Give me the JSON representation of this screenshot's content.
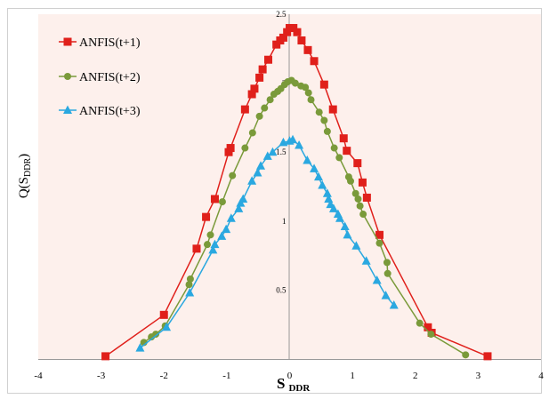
{
  "chart_data": {
    "type": "line",
    "title": "",
    "xlabel_main": "S",
    "xlabel_sub": "DDR",
    "ylabel_main": "Q(S",
    "ylabel_sub": "DDR",
    "ylabel_close": ")",
    "xlim": [
      -4,
      4
    ],
    "ylim": [
      0,
      2.5
    ],
    "xticks": [
      "-4",
      "-3",
      "-2",
      "-1",
      "0",
      "1",
      "2",
      "3",
      "4"
    ],
    "yticks": [
      "0.5",
      "1",
      "1.5",
      "2",
      "2.5"
    ],
    "grid": false,
    "legend_position": "top-left",
    "background_color": "#fdf0ec",
    "series": [
      {
        "name": "ANFIS(t+1)",
        "color": "#e0201b",
        "marker": "square",
        "points": [
          [
            -2.93,
            0.02
          ],
          [
            -2.0,
            0.32
          ],
          [
            -1.48,
            0.8
          ],
          [
            -1.33,
            1.03
          ],
          [
            -1.19,
            1.16
          ],
          [
            -0.97,
            1.5
          ],
          [
            -0.94,
            1.53
          ],
          [
            -0.71,
            1.81
          ],
          [
            -0.6,
            1.92
          ],
          [
            -0.56,
            1.96
          ],
          [
            -0.48,
            2.04
          ],
          [
            -0.43,
            2.1
          ],
          [
            -0.34,
            2.17
          ],
          [
            -0.21,
            2.28
          ],
          [
            -0.15,
            2.31
          ],
          [
            -0.1,
            2.33
          ],
          [
            -0.04,
            2.37
          ],
          [
            0.0,
            2.4
          ],
          [
            0.06,
            2.4
          ],
          [
            0.12,
            2.37
          ],
          [
            0.19,
            2.31
          ],
          [
            0.29,
            2.24
          ],
          [
            0.39,
            2.16
          ],
          [
            0.55,
            1.99
          ],
          [
            0.69,
            1.81
          ],
          [
            0.86,
            1.6
          ],
          [
            0.91,
            1.51
          ],
          [
            1.08,
            1.42
          ],
          [
            1.16,
            1.28
          ],
          [
            1.23,
            1.17
          ],
          [
            1.43,
            0.9
          ],
          [
            2.2,
            0.23
          ],
          [
            2.26,
            0.19
          ],
          [
            3.15,
            0.02
          ]
        ]
      },
      {
        "name": "ANFIS(t+2)",
        "color": "#7a9a3a",
        "marker": "circle",
        "points": [
          [
            -2.32,
            0.12
          ],
          [
            -2.2,
            0.16
          ],
          [
            -2.13,
            0.18
          ],
          [
            -1.98,
            0.24
          ],
          [
            -1.6,
            0.54
          ],
          [
            -1.58,
            0.58
          ],
          [
            -1.31,
            0.83
          ],
          [
            -1.26,
            0.9
          ],
          [
            -1.07,
            1.14
          ],
          [
            -0.91,
            1.33
          ],
          [
            -0.71,
            1.53
          ],
          [
            -0.59,
            1.64
          ],
          [
            -0.48,
            1.76
          ],
          [
            -0.4,
            1.82
          ],
          [
            -0.31,
            1.88
          ],
          [
            -0.25,
            1.92
          ],
          [
            -0.19,
            1.94
          ],
          [
            -0.14,
            1.96
          ],
          [
            -0.08,
            1.99
          ],
          [
            -0.03,
            2.01
          ],
          [
            0.03,
            2.02
          ],
          [
            0.09,
            2.0
          ],
          [
            0.18,
            1.98
          ],
          [
            0.25,
            1.97
          ],
          [
            0.3,
            1.93
          ],
          [
            0.34,
            1.88
          ],
          [
            0.47,
            1.79
          ],
          [
            0.55,
            1.73
          ],
          [
            0.6,
            1.65
          ],
          [
            0.71,
            1.53
          ],
          [
            0.79,
            1.46
          ],
          [
            0.94,
            1.32
          ],
          [
            0.97,
            1.29
          ],
          [
            1.05,
            1.2
          ],
          [
            1.09,
            1.16
          ],
          [
            1.12,
            1.11
          ],
          [
            1.17,
            1.05
          ],
          [
            1.43,
            0.84
          ],
          [
            1.55,
            0.7
          ],
          [
            1.56,
            0.62
          ],
          [
            2.07,
            0.26
          ],
          [
            2.25,
            0.18
          ],
          [
            2.8,
            0.03
          ]
        ]
      },
      {
        "name": "ANFIS(t+3)",
        "color": "#2aa8e0",
        "marker": "triangle",
        "points": [
          [
            -2.38,
            0.08
          ],
          [
            -1.96,
            0.23
          ],
          [
            -1.59,
            0.48
          ],
          [
            -1.22,
            0.79
          ],
          [
            -1.19,
            0.83
          ],
          [
            -1.08,
            0.89
          ],
          [
            -1.01,
            0.94
          ],
          [
            -0.93,
            1.02
          ],
          [
            -0.81,
            1.09
          ],
          [
            -0.78,
            1.13
          ],
          [
            -0.74,
            1.16
          ],
          [
            -0.6,
            1.29
          ],
          [
            -0.51,
            1.35
          ],
          [
            -0.46,
            1.4
          ],
          [
            -0.35,
            1.47
          ],
          [
            -0.27,
            1.5
          ],
          [
            -0.1,
            1.57
          ],
          [
            0.0,
            1.58
          ],
          [
            0.05,
            1.59
          ],
          [
            0.15,
            1.55
          ],
          [
            0.28,
            1.44
          ],
          [
            0.39,
            1.38
          ],
          [
            0.46,
            1.32
          ],
          [
            0.52,
            1.26
          ],
          [
            0.6,
            1.2
          ],
          [
            0.62,
            1.16
          ],
          [
            0.65,
            1.12
          ],
          [
            0.7,
            1.09
          ],
          [
            0.77,
            1.05
          ],
          [
            0.8,
            1.02
          ],
          [
            0.88,
            0.96
          ],
          [
            0.92,
            0.9
          ],
          [
            1.06,
            0.82
          ],
          [
            1.22,
            0.71
          ],
          [
            1.39,
            0.57
          ],
          [
            1.53,
            0.46
          ],
          [
            1.66,
            0.39
          ]
        ]
      }
    ]
  }
}
